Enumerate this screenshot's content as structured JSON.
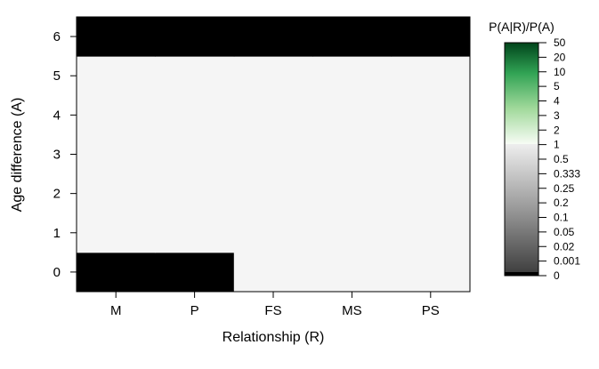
{
  "chart_data": {
    "type": "heatmap",
    "title": "",
    "xlabel": "Relationship (R)",
    "ylabel": "Age difference (A)",
    "x_categories": [
      "M",
      "P",
      "FS",
      "MS",
      "PS"
    ],
    "y_categories": [
      "0",
      "1",
      "2",
      "3",
      "4",
      "5",
      "6"
    ],
    "colorbar": {
      "title": "P(A|R)/P(A)",
      "ticks": [
        "0",
        "0.001",
        "0.02",
        "0.05",
        "0.1",
        "0.2",
        "0.25",
        "0.333",
        "0.5",
        "1",
        "2",
        "3",
        "4",
        "5",
        "10",
        "20",
        "50"
      ],
      "low_color": "#000000",
      "mid_color": "#f5f5f5",
      "high_color": "#00441b"
    },
    "cells": [
      {
        "x": "M",
        "y": "0",
        "value": "0"
      },
      {
        "x": "P",
        "y": "0",
        "value": "0"
      },
      {
        "x": "FS",
        "y": "0",
        "value": "1"
      },
      {
        "x": "MS",
        "y": "0",
        "value": "1"
      },
      {
        "x": "PS",
        "y": "0",
        "value": "1"
      },
      {
        "x": "M",
        "y": "1",
        "value": "1"
      },
      {
        "x": "P",
        "y": "1",
        "value": "1"
      },
      {
        "x": "FS",
        "y": "1",
        "value": "1"
      },
      {
        "x": "MS",
        "y": "1",
        "value": "1"
      },
      {
        "x": "PS",
        "y": "1",
        "value": "1"
      },
      {
        "x": "M",
        "y": "2",
        "value": "1"
      },
      {
        "x": "P",
        "y": "2",
        "value": "1"
      },
      {
        "x": "FS",
        "y": "2",
        "value": "1"
      },
      {
        "x": "MS",
        "y": "2",
        "value": "1"
      },
      {
        "x": "PS",
        "y": "2",
        "value": "1"
      },
      {
        "x": "M",
        "y": "3",
        "value": "1"
      },
      {
        "x": "P",
        "y": "3",
        "value": "1"
      },
      {
        "x": "FS",
        "y": "3",
        "value": "1"
      },
      {
        "x": "MS",
        "y": "3",
        "value": "1"
      },
      {
        "x": "PS",
        "y": "3",
        "value": "1"
      },
      {
        "x": "M",
        "y": "4",
        "value": "1"
      },
      {
        "x": "P",
        "y": "4",
        "value": "1"
      },
      {
        "x": "FS",
        "y": "4",
        "value": "1"
      },
      {
        "x": "MS",
        "y": "4",
        "value": "1"
      },
      {
        "x": "PS",
        "y": "4",
        "value": "1"
      },
      {
        "x": "M",
        "y": "5",
        "value": "1"
      },
      {
        "x": "P",
        "y": "5",
        "value": "1"
      },
      {
        "x": "FS",
        "y": "5",
        "value": "1"
      },
      {
        "x": "MS",
        "y": "5",
        "value": "1"
      },
      {
        "x": "PS",
        "y": "5",
        "value": "1"
      },
      {
        "x": "M",
        "y": "6",
        "value": "0"
      },
      {
        "x": "P",
        "y": "6",
        "value": "0"
      },
      {
        "x": "FS",
        "y": "6",
        "value": "0"
      },
      {
        "x": "MS",
        "y": "6",
        "value": "0"
      },
      {
        "x": "PS",
        "y": "6",
        "value": "0"
      }
    ]
  }
}
